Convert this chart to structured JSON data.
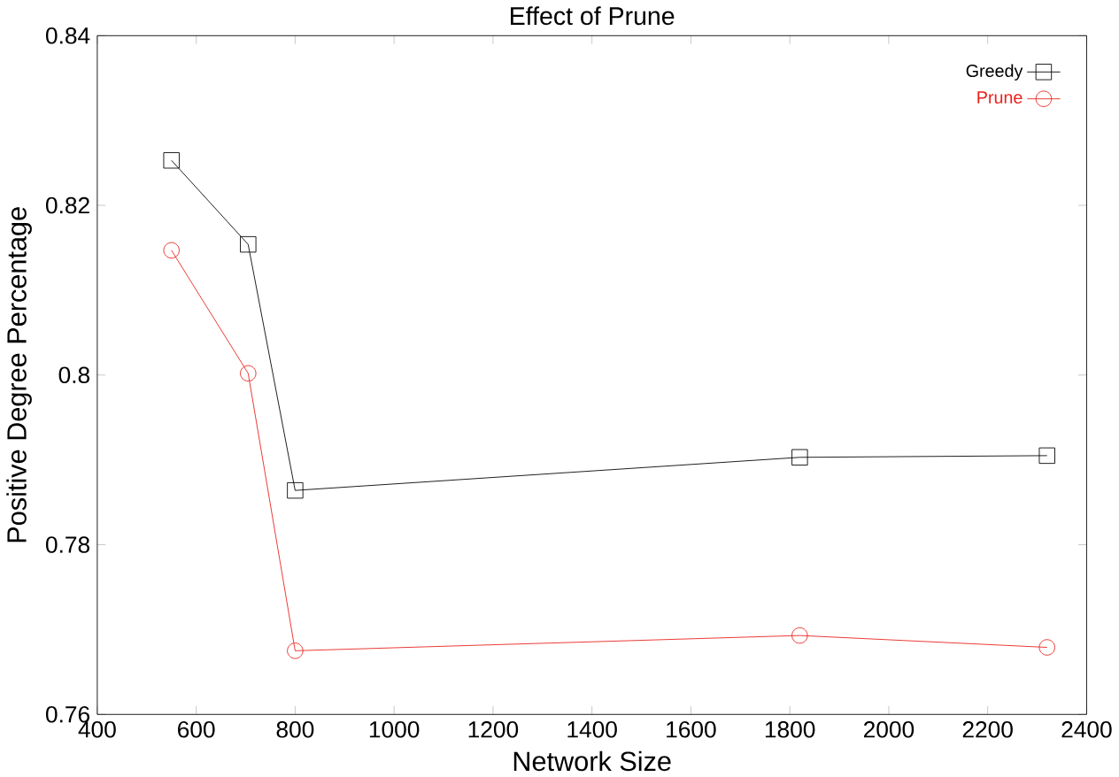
{
  "chart_data": {
    "type": "line",
    "title": "Effect of Prune",
    "xlabel": "Network Size",
    "ylabel": "Positive Degree Percentage",
    "x": [
      550,
      705,
      800,
      1820,
      2320
    ],
    "series": [
      {
        "name": "Greedy",
        "color": "#000000",
        "marker": "square",
        "values": [
          0.8253,
          0.8154,
          0.7864,
          0.7903,
          0.7905
        ]
      },
      {
        "name": "Prune",
        "color": "#e8201a",
        "marker": "circle",
        "values": [
          0.8147,
          0.8002,
          0.7675,
          0.7693,
          0.7679
        ]
      }
    ],
    "xlim": [
      400,
      2400
    ],
    "xticks": [
      400,
      600,
      800,
      1000,
      1200,
      1400,
      1600,
      1800,
      2000,
      2200,
      2400
    ],
    "ylim": [
      0.76,
      0.84
    ],
    "yticks": [
      0.76,
      0.78,
      0.8,
      0.82,
      0.84
    ],
    "grid": false,
    "legend": "top right",
    "line_style": "solid"
  }
}
